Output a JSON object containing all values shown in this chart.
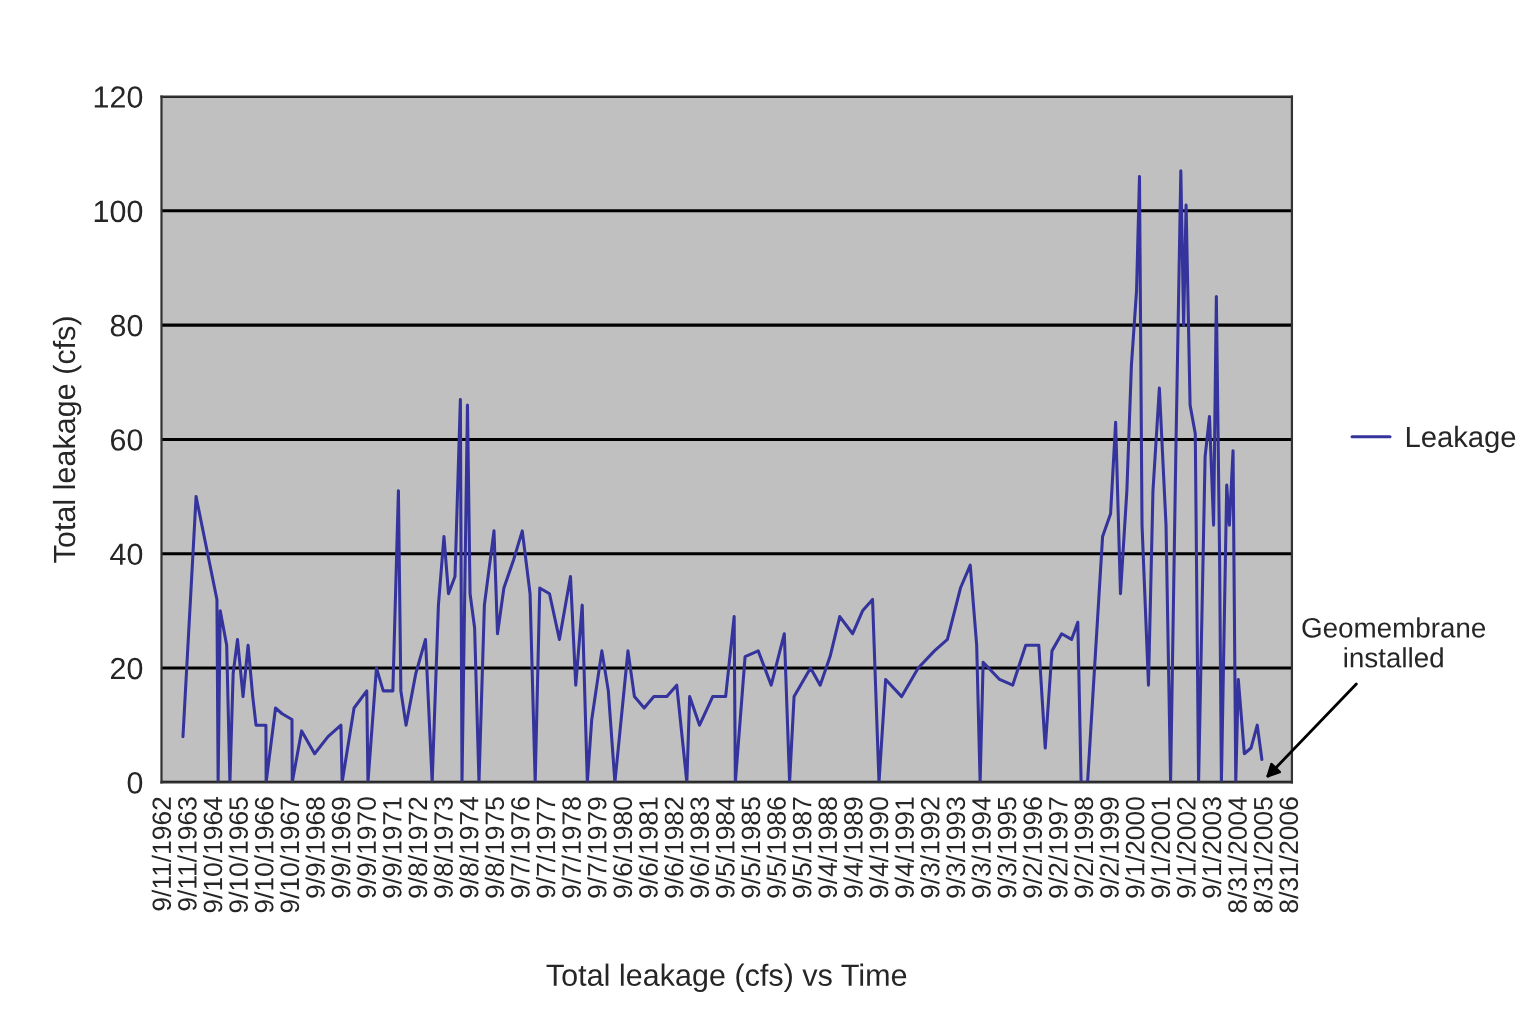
{
  "chart_data": {
    "type": "line",
    "xlabel": "Total leakage (cfs) vs Time",
    "ylabel": "Total leakage (cfs)",
    "series": [
      {
        "name": "Leakage",
        "color": "#34349c",
        "x": [
          "1963-06-08",
          "1963-12-12",
          "1964-10-04",
          "1964-10-21",
          "1964-11-20",
          "1965-02-20",
          "1965-04-07",
          "1965-05-23",
          "1965-07-24",
          "1965-10-11",
          "1965-12-22",
          "1966-02-26",
          "1966-04-14",
          "1966-09-02",
          "1966-09-05",
          "1967-01-17",
          "1967-04-21",
          "1967-09-08",
          "1967-09-12",
          "1968-01-24",
          "1968-07-27",
          "1969-02-03",
          "1969-08-06",
          "1969-08-23",
          "1970-02-09",
          "1970-08-09",
          "1970-08-26",
          "1970-12-25",
          "1971-04-01",
          "1971-08-16",
          "1971-11-03",
          "1971-12-08",
          "1972-02-20",
          "1972-07-07",
          "1972-11-23",
          "1973-02-26",
          "1973-05-26",
          "1973-08-13",
          "1973-10-17",
          "1974-01-17",
          "1974-04-04",
          "1974-04-27",
          "1974-07-14",
          "1974-08-20",
          "1974-10-24",
          "1974-12-25",
          "1975-03-12",
          "1975-07-27",
          "1975-09-15",
          "1975-12-15",
          "1976-05-03",
          "1976-09-02",
          "1976-12-22",
          "1977-03-05",
          "1977-05-09",
          "1977-09-25",
          "1978-02-13",
          "1978-07-21",
          "1978-10-04",
          "1979-01-04",
          "1979-03-18",
          "1979-05-20",
          "1979-10-11",
          "1980-01-11",
          "1980-04-14",
          "1980-10-17",
          "1981-01-17",
          "1981-06-05",
          "1981-10-21",
          "1982-04-24",
          "1982-09-12",
          "1983-02-03",
          "1983-03-15",
          "1983-08-03",
          "1984-02-06",
          "1984-08-09",
          "1984-12-08",
          "1984-12-25",
          "1985-05-13",
          "1985-11-16",
          "1986-05-20",
          "1986-11-23",
          "1987-02-06",
          "1987-04-11",
          "1987-12-02",
          "1988-04-17",
          "1988-09-05",
          "1989-01-21",
          "1989-07-24",
          "1989-12-12",
          "1990-05-03",
          "1990-08-03",
          "1990-11-06",
          "1991-06-22",
          "1992-02-13",
          "1992-10-01",
          "1993-04-04",
          "1993-10-07",
          "1994-02-23",
          "1994-05-26",
          "1994-07-14",
          "1994-08-26",
          "1995-04-17",
          "1995-10-21",
          "1996-04-24",
          "1996-10-27",
          "1997-01-27",
          "1997-05-03",
          "1997-09-18",
          "1998-02-06",
          "1998-05-06",
          "1998-06-22",
          "1998-09-22",
          "1999-04-24",
          "1999-08-16",
          "1999-10-27",
          "2000-01-04",
          "2000-04-04",
          "2000-06-08",
          "2000-08-20",
          "2000-10-01",
          "2000-11-06",
          "2001-02-06",
          "2001-04-11",
          "2001-07-11",
          "2001-10-14",
          "2001-12-18",
          "2002-03-02",
          "2002-05-13",
          "2002-06-22",
          "2002-07-27",
          "2002-09-22",
          "2002-12-05",
          "2003-01-21",
          "2003-04-24",
          "2003-06-25",
          "2003-08-23",
          "2003-10-01",
          "2003-11-16",
          "2003-12-12",
          "2004-02-26",
          "2004-04-04",
          "2004-05-26",
          "2004-07-04",
          "2004-08-09",
          "2004-11-03",
          "2005-02-06",
          "2005-05-06",
          "2005-07-11"
        ],
        "values": [
          8,
          50,
          32,
          0,
          30,
          24,
          0,
          19,
          25,
          15,
          24,
          15,
          10,
          10,
          0,
          13,
          12,
          11,
          0,
          9,
          5,
          8,
          10,
          0,
          13,
          16,
          0,
          20,
          16,
          16,
          51,
          16,
          10,
          19,
          25,
          0,
          31,
          43,
          33,
          36,
          67,
          0,
          66,
          33,
          27,
          0,
          31,
          44,
          26,
          34,
          39,
          44,
          33,
          0,
          34,
          33,
          25,
          36,
          17,
          31,
          0,
          11,
          23,
          16,
          0,
          23,
          15,
          13,
          15,
          15,
          17,
          0,
          15,
          10,
          15,
          15,
          29,
          0,
          22,
          23,
          17,
          26,
          0,
          15,
          20,
          17,
          22,
          29,
          26,
          30,
          32,
          0,
          18,
          15,
          20,
          23,
          25,
          34,
          38,
          24,
          0,
          21,
          18,
          17,
          24,
          24,
          6,
          23,
          26,
          25,
          28,
          0,
          0,
          43,
          47,
          63,
          33,
          51,
          73,
          86,
          106,
          45,
          17,
          51,
          69,
          45,
          0,
          57,
          107,
          80,
          101,
          66,
          61,
          0,
          57,
          64,
          45,
          85,
          40,
          0,
          52,
          45,
          58,
          0,
          18,
          5,
          6,
          10,
          4
        ]
      }
    ],
    "xlim": [
      "1962-08-06",
      "2006-09-12"
    ],
    "xticks": [
      {
        "value": "1962-09-11",
        "label": "9/11/1962"
      },
      {
        "value": "1963-09-11",
        "label": "9/11/1963"
      },
      {
        "value": "1964-09-10",
        "label": "9/10/1964"
      },
      {
        "value": "1965-09-10",
        "label": "9/10/1965"
      },
      {
        "value": "1966-09-10",
        "label": "9/10/1966"
      },
      {
        "value": "1967-09-10",
        "label": "9/10/1967"
      },
      {
        "value": "1968-09-09",
        "label": "9/9/1968"
      },
      {
        "value": "1969-09-09",
        "label": "9/9/1969"
      },
      {
        "value": "1970-09-09",
        "label": "9/9/1970"
      },
      {
        "value": "1971-09-09",
        "label": "9/9/1971"
      },
      {
        "value": "1972-09-08",
        "label": "9/8/1972"
      },
      {
        "value": "1973-09-08",
        "label": "9/8/1973"
      },
      {
        "value": "1974-09-08",
        "label": "9/8/1974"
      },
      {
        "value": "1975-09-08",
        "label": "9/8/1975"
      },
      {
        "value": "1976-09-07",
        "label": "9/7/1976"
      },
      {
        "value": "1977-09-07",
        "label": "9/7/1977"
      },
      {
        "value": "1978-09-07",
        "label": "9/7/1978"
      },
      {
        "value": "1979-09-07",
        "label": "9/7/1979"
      },
      {
        "value": "1980-09-06",
        "label": "9/6/1980"
      },
      {
        "value": "1981-09-06",
        "label": "9/6/1981"
      },
      {
        "value": "1982-09-06",
        "label": "9/6/1982"
      },
      {
        "value": "1983-09-06",
        "label": "9/6/1983"
      },
      {
        "value": "1984-09-05",
        "label": "9/5/1984"
      },
      {
        "value": "1985-09-05",
        "label": "9/5/1985"
      },
      {
        "value": "1986-09-05",
        "label": "9/5/1986"
      },
      {
        "value": "1987-09-05",
        "label": "9/5/1987"
      },
      {
        "value": "1988-09-04",
        "label": "9/4/1988"
      },
      {
        "value": "1989-09-04",
        "label": "9/4/1989"
      },
      {
        "value": "1990-09-04",
        "label": "9/4/1990"
      },
      {
        "value": "1991-09-04",
        "label": "9/4/1991"
      },
      {
        "value": "1992-09-03",
        "label": "9/3/1992"
      },
      {
        "value": "1993-09-03",
        "label": "9/3/1993"
      },
      {
        "value": "1994-09-03",
        "label": "9/3/1994"
      },
      {
        "value": "1995-09-03",
        "label": "9/3/1995"
      },
      {
        "value": "1996-09-02",
        "label": "9/2/1996"
      },
      {
        "value": "1997-09-02",
        "label": "9/2/1997"
      },
      {
        "value": "1998-09-02",
        "label": "9/2/1998"
      },
      {
        "value": "1999-09-02",
        "label": "9/2/1999"
      },
      {
        "value": "2000-09-01",
        "label": "9/1/2000"
      },
      {
        "value": "2001-09-01",
        "label": "9/1/2001"
      },
      {
        "value": "2002-09-01",
        "label": "9/1/2002"
      },
      {
        "value": "2003-09-01",
        "label": "9/1/2003"
      },
      {
        "value": "2004-08-31",
        "label": "8/31/2004"
      },
      {
        "value": "2005-08-31",
        "label": "8/31/2005"
      },
      {
        "value": "2006-08-31",
        "label": "8/31/2006"
      }
    ],
    "ylim": [
      0,
      120
    ],
    "yticks": [
      0,
      20,
      40,
      60,
      80,
      100,
      120
    ],
    "grid": "y",
    "legend": "right",
    "marker": "none",
    "line_style": "solid",
    "annotations": [
      "Geomembrane\ninstalled"
    ]
  }
}
